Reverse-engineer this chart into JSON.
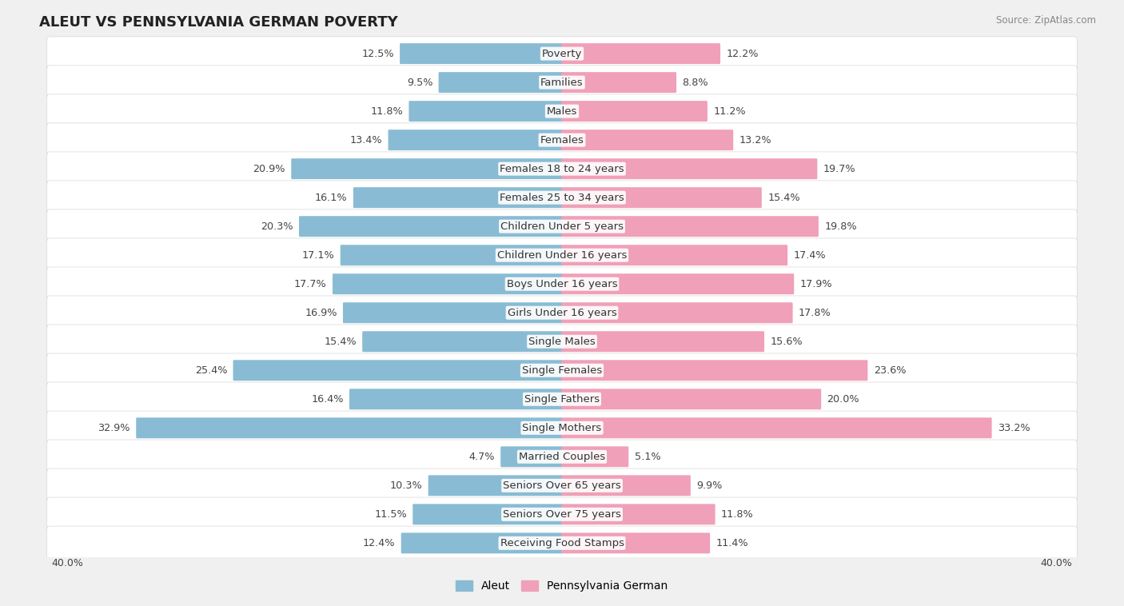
{
  "title": "ALEUT VS PENNSYLVANIA GERMAN POVERTY",
  "source": "Source: ZipAtlas.com",
  "categories": [
    "Poverty",
    "Families",
    "Males",
    "Females",
    "Females 18 to 24 years",
    "Females 25 to 34 years",
    "Children Under 5 years",
    "Children Under 16 years",
    "Boys Under 16 years",
    "Girls Under 16 years",
    "Single Males",
    "Single Females",
    "Single Fathers",
    "Single Mothers",
    "Married Couples",
    "Seniors Over 65 years",
    "Seniors Over 75 years",
    "Receiving Food Stamps"
  ],
  "aleut_values": [
    12.5,
    9.5,
    11.8,
    13.4,
    20.9,
    16.1,
    20.3,
    17.1,
    17.7,
    16.9,
    15.4,
    25.4,
    16.4,
    32.9,
    4.7,
    10.3,
    11.5,
    12.4
  ],
  "pa_german_values": [
    12.2,
    8.8,
    11.2,
    13.2,
    19.7,
    15.4,
    19.8,
    17.4,
    17.9,
    17.8,
    15.6,
    23.6,
    20.0,
    33.2,
    5.1,
    9.9,
    11.8,
    11.4
  ],
  "aleut_color": "#89bcd4",
  "pa_german_color": "#f0a0b8",
  "background_color": "#f0f0f0",
  "bar_bg_color": "#ffffff",
  "axis_max": 40.0,
  "bar_height": 0.62,
  "label_fontsize": 9.5,
  "title_fontsize": 13,
  "value_fontsize": 9.2,
  "source_fontsize": 8.5
}
